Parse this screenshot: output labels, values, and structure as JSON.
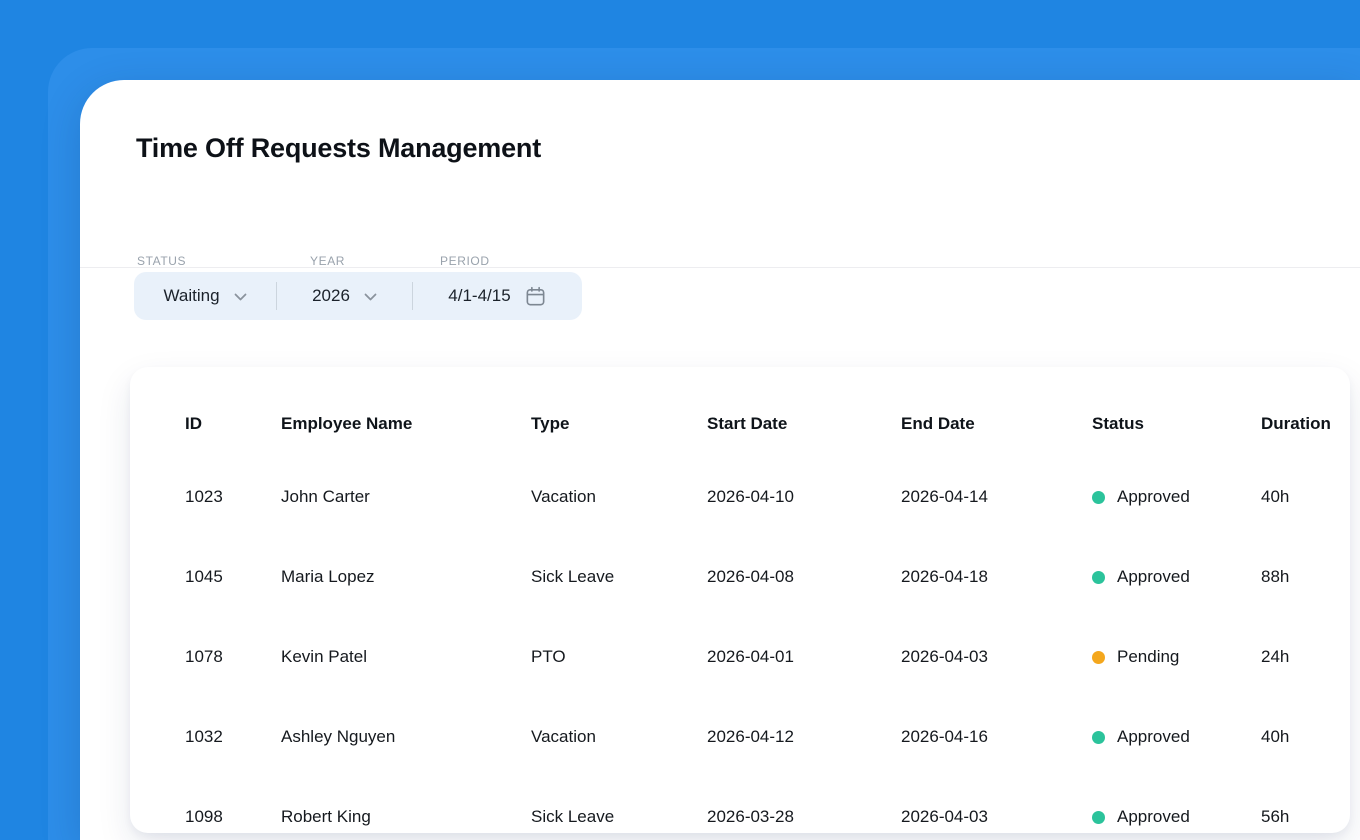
{
  "page": {
    "title": "Time Off Requests Management"
  },
  "filters": {
    "status": {
      "label": "STATUS",
      "value": "Waiting"
    },
    "year": {
      "label": "YEAR",
      "value": "2026"
    },
    "period": {
      "label": "PERIOD",
      "value": "4/1-4/15"
    }
  },
  "table": {
    "columns": [
      "ID",
      "Employee Name",
      "Type",
      "Start Date",
      "End Date",
      "Status",
      "Duration"
    ],
    "rows": [
      {
        "id": "1023",
        "name": "John Carter",
        "type": "Vacation",
        "start": "2026-04-10",
        "end": "2026-04-14",
        "status": "Approved",
        "duration": "40h"
      },
      {
        "id": "1045",
        "name": "Maria Lopez",
        "type": "Sick Leave",
        "start": "2026-04-08",
        "end": "2026-04-18",
        "status": "Approved",
        "duration": "88h"
      },
      {
        "id": "1078",
        "name": "Kevin Patel",
        "type": "PTO",
        "start": "2026-04-01",
        "end": "2026-04-03",
        "status": "Pending",
        "duration": "24h"
      },
      {
        "id": "1032",
        "name": "Ashley Nguyen",
        "type": "Vacation",
        "start": "2026-04-12",
        "end": "2026-04-16",
        "status": "Approved",
        "duration": "40h"
      },
      {
        "id": "1098",
        "name": "Robert King",
        "type": "Sick Leave",
        "start": "2026-03-28",
        "end": "2026-04-03",
        "status": "Approved",
        "duration": "56h"
      }
    ]
  },
  "colors": {
    "approved": "#2bc39b",
    "pending": "#f4a71d",
    "accent_blue": "#1f85e2",
    "pill_bg": "#e9f1fa"
  }
}
